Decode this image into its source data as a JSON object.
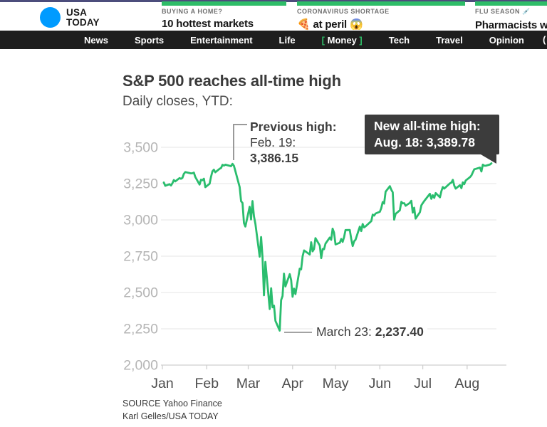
{
  "header": {
    "logo": {
      "line1": "USA",
      "line2": "TODAY"
    },
    "teasers": [
      {
        "kicker": "BUYING A HOME?",
        "headline": "10 hottest markets"
      },
      {
        "kicker": "CORONAVIRUS SHORTAGE",
        "headline": "🍕 at peril 😱"
      },
      {
        "kicker": "FLU SEASON 💉",
        "headline": "Pharmacists wearing 😁"
      }
    ],
    "nav": {
      "items": [
        "News",
        "Sports",
        "Entertainment",
        "Life",
        "Money",
        "Tech",
        "Travel",
        "Opinion"
      ],
      "active_item": "Money",
      "bracket_open": "[ ",
      "bracket_close": " ]",
      "overflow_item": "("
    }
  },
  "article": {
    "title": "S&P 500 reaches all-time high",
    "subtitle": "Daily closes, YTD:"
  },
  "annotations": {
    "previous_high": {
      "label": "Previous high:",
      "date": "Feb. 19:",
      "value": "3,386.15"
    },
    "new_high": {
      "label": "New all-time high:",
      "value_line": "Aug. 18: 3,389.78"
    },
    "low": {
      "label": "March 23:",
      "value": "2,237.40"
    }
  },
  "source": {
    "line1": "SOURCE Yahoo Finance",
    "line2": "Karl Gelles/USA TODAY"
  },
  "colors": {
    "accent_green": "#2ebd68",
    "line_green": "#2abd6e",
    "logo_blue": "#009bff",
    "top_strip_indigo": "#4c4d7c",
    "nav_bg": "#1e1e1e",
    "tooltip_bg": "#3c3c3c",
    "grid": "#e9e9e9",
    "axis": "#cfcfcf",
    "ylabel": "#b5b5b5",
    "xlabel": "#4d4d4d"
  },
  "chart_data": {
    "type": "line",
    "title": "S&P 500 reaches all-time high",
    "subtitle": "Daily closes, YTD:",
    "xlabel": "",
    "ylabel": "",
    "ylim": [
      2000,
      3500
    ],
    "yticks": [
      3500,
      3250,
      3000,
      2750,
      2500,
      2250,
      2000
    ],
    "ytick_labels": [
      "3,500",
      "3,250",
      "3,000",
      "2,750",
      "2,500",
      "2,250",
      "2,000"
    ],
    "xtick_labels": [
      "Jan",
      "Feb",
      "Mar",
      "Apr",
      "May",
      "Jun",
      "Jul",
      "Aug"
    ],
    "grid": true,
    "legend": "none",
    "annotations": [
      {
        "date": "2-19",
        "value": 3386.15,
        "text": "Previous high: Feb. 19: 3,386.15"
      },
      {
        "date": "3-23",
        "value": 2237.4,
        "text": "March 23: 2,237.40"
      },
      {
        "date": "8-18",
        "value": 3389.78,
        "text": "New all-time high: Aug. 18: 3,389.78"
      }
    ],
    "series": [
      {
        "name": "S&P 500 daily close",
        "points": [
          [
            "1-2",
            3257.85
          ],
          [
            "1-3",
            3234.85
          ],
          [
            "1-6",
            3246.28
          ],
          [
            "1-7",
            3237.18
          ],
          [
            "1-8",
            3253.05
          ],
          [
            "1-9",
            3274.7
          ],
          [
            "1-10",
            3265.35
          ],
          [
            "1-13",
            3288.13
          ],
          [
            "1-14",
            3283.15
          ],
          [
            "1-15",
            3289.29
          ],
          [
            "1-16",
            3316.81
          ],
          [
            "1-17",
            3329.62
          ],
          [
            "1-21",
            3320.79
          ],
          [
            "1-22",
            3321.75
          ],
          [
            "1-23",
            3325.54
          ],
          [
            "1-24",
            3295.47
          ],
          [
            "1-27",
            3243.63
          ],
          [
            "1-28",
            3276.24
          ],
          [
            "1-29",
            3273.4
          ],
          [
            "1-30",
            3283.66
          ],
          [
            "1-31",
            3225.52
          ],
          [
            "2-3",
            3248.92
          ],
          [
            "2-4",
            3297.59
          ],
          [
            "2-5",
            3334.69
          ],
          [
            "2-6",
            3345.78
          ],
          [
            "2-7",
            3327.71
          ],
          [
            "2-10",
            3352.09
          ],
          [
            "2-11",
            3357.75
          ],
          [
            "2-12",
            3379.45
          ],
          [
            "2-13",
            3373.94
          ],
          [
            "2-14",
            3380.16
          ],
          [
            "2-18",
            3370.29
          ],
          [
            "2-19",
            3386.15
          ],
          [
            "2-20",
            3373.23
          ],
          [
            "2-21",
            3337.75
          ],
          [
            "2-24",
            3225.89
          ],
          [
            "2-25",
            3128.21
          ],
          [
            "2-26",
            3116.39
          ],
          [
            "2-27",
            2978.76
          ],
          [
            "2-28",
            2954.22
          ],
          [
            "3-2",
            3090.23
          ],
          [
            "3-3",
            3003.37
          ],
          [
            "3-4",
            3130.12
          ],
          [
            "3-5",
            3023.94
          ],
          [
            "3-6",
            2972.37
          ],
          [
            "3-9",
            2746.56
          ],
          [
            "3-10",
            2882.23
          ],
          [
            "3-11",
            2741.38
          ],
          [
            "3-12",
            2480.64
          ],
          [
            "3-13",
            2711.02
          ],
          [
            "3-16",
            2386.13
          ],
          [
            "3-17",
            2529.19
          ],
          [
            "3-18",
            2398.1
          ],
          [
            "3-19",
            2409.39
          ],
          [
            "3-20",
            2304.92
          ],
          [
            "3-23",
            2237.4
          ],
          [
            "3-24",
            2447.33
          ],
          [
            "3-25",
            2475.56
          ],
          [
            "3-26",
            2630.07
          ],
          [
            "3-27",
            2541.47
          ],
          [
            "3-30",
            2626.65
          ],
          [
            "3-31",
            2584.59
          ],
          [
            "4-1",
            2470.5
          ],
          [
            "4-2",
            2526.9
          ],
          [
            "4-3",
            2488.65
          ],
          [
            "4-6",
            2663.68
          ],
          [
            "4-7",
            2659.41
          ],
          [
            "4-8",
            2749.98
          ],
          [
            "4-9",
            2789.82
          ],
          [
            "4-13",
            2761.63
          ],
          [
            "4-14",
            2846.06
          ],
          [
            "4-15",
            2783.36
          ],
          [
            "4-16",
            2799.55
          ],
          [
            "4-17",
            2874.56
          ],
          [
            "4-20",
            2823.16
          ],
          [
            "4-21",
            2736.56
          ],
          [
            "4-22",
            2799.31
          ],
          [
            "4-23",
            2797.8
          ],
          [
            "4-24",
            2836.74
          ],
          [
            "4-27",
            2878.48
          ],
          [
            "4-28",
            2863.39
          ],
          [
            "4-29",
            2939.51
          ],
          [
            "4-30",
            2912.43
          ],
          [
            "5-1",
            2830.71
          ],
          [
            "5-4",
            2842.74
          ],
          [
            "5-5",
            2868.44
          ],
          [
            "5-6",
            2848.42
          ],
          [
            "5-7",
            2881.19
          ],
          [
            "5-8",
            2929.8
          ],
          [
            "5-11",
            2930.32
          ],
          [
            "5-12",
            2870.12
          ],
          [
            "5-13",
            2820.0
          ],
          [
            "5-14",
            2852.5
          ],
          [
            "5-15",
            2863.7
          ],
          [
            "5-18",
            2953.91
          ],
          [
            "5-19",
            2922.94
          ],
          [
            "5-20",
            2971.61
          ],
          [
            "5-21",
            2948.51
          ],
          [
            "5-22",
            2955.45
          ],
          [
            "5-26",
            2991.77
          ],
          [
            "5-27",
            3036.13
          ],
          [
            "5-28",
            3029.73
          ],
          [
            "5-29",
            3044.31
          ],
          [
            "6-1",
            3055.73
          ],
          [
            "6-2",
            3080.82
          ],
          [
            "6-3",
            3122.87
          ],
          [
            "6-4",
            3112.35
          ],
          [
            "6-5",
            3193.93
          ],
          [
            "6-8",
            3232.39
          ],
          [
            "6-9",
            3207.18
          ],
          [
            "6-10",
            3190.14
          ],
          [
            "6-11",
            3002.1
          ],
          [
            "6-12",
            3041.31
          ],
          [
            "6-15",
            3066.59
          ],
          [
            "6-16",
            3124.74
          ],
          [
            "6-17",
            3113.49
          ],
          [
            "6-18",
            3115.34
          ],
          [
            "6-19",
            3097.74
          ],
          [
            "6-22",
            3117.86
          ],
          [
            "6-23",
            3131.29
          ],
          [
            "6-24",
            3050.33
          ],
          [
            "6-25",
            3083.76
          ],
          [
            "6-26",
            3009.05
          ],
          [
            "6-29",
            3053.24
          ],
          [
            "6-30",
            3100.29
          ],
          [
            "7-1",
            3115.86
          ],
          [
            "7-2",
            3130.01
          ],
          [
            "7-6",
            3179.72
          ],
          [
            "7-7",
            3145.32
          ],
          [
            "7-8",
            3169.94
          ],
          [
            "7-9",
            3152.05
          ],
          [
            "7-10",
            3185.04
          ],
          [
            "7-13",
            3155.22
          ],
          [
            "7-14",
            3197.52
          ],
          [
            "7-15",
            3226.56
          ],
          [
            "7-16",
            3215.57
          ],
          [
            "7-17",
            3224.73
          ],
          [
            "7-20",
            3251.84
          ],
          [
            "7-21",
            3257.3
          ],
          [
            "7-22",
            3276.02
          ],
          [
            "7-23",
            3235.66
          ],
          [
            "7-24",
            3215.63
          ],
          [
            "7-27",
            3239.41
          ],
          [
            "7-28",
            3218.44
          ],
          [
            "7-29",
            3258.44
          ],
          [
            "7-30",
            3246.22
          ],
          [
            "7-31",
            3271.12
          ],
          [
            "8-3",
            3294.61
          ],
          [
            "8-4",
            3306.51
          ],
          [
            "8-5",
            3327.77
          ],
          [
            "8-6",
            3349.16
          ],
          [
            "8-7",
            3351.28
          ],
          [
            "8-10",
            3360.47
          ],
          [
            "8-11",
            3333.69
          ],
          [
            "8-12",
            3380.35
          ],
          [
            "8-13",
            3373.43
          ],
          [
            "8-14",
            3372.85
          ],
          [
            "8-17",
            3381.99
          ],
          [
            "8-18",
            3389.78
          ]
        ]
      }
    ]
  }
}
